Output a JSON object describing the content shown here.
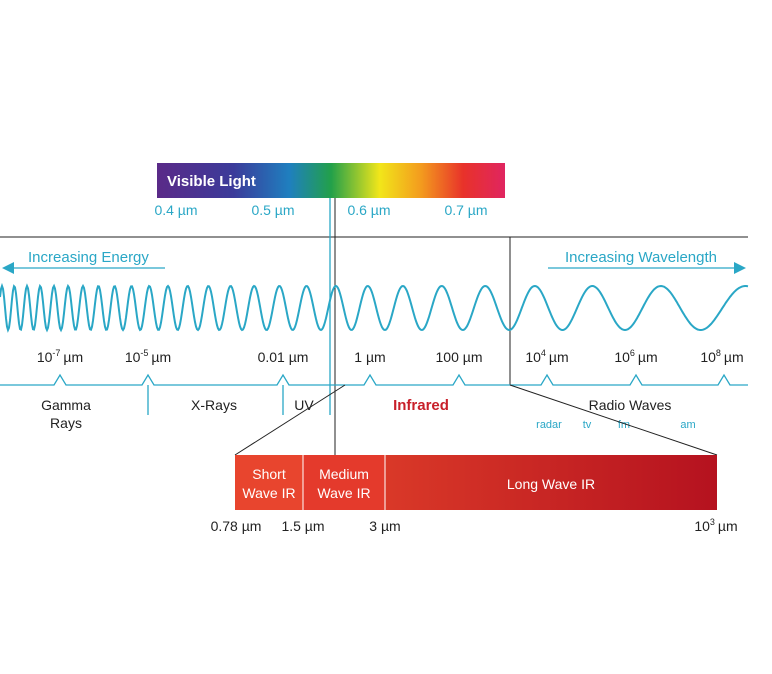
{
  "visible": {
    "title": "Visible Light",
    "ticks": [
      "0.4 µm",
      "0.5 µm",
      "0.6 µm",
      "0.7 µm"
    ]
  },
  "arrows": {
    "left": "Increasing Energy",
    "right": "Increasing Wavelength"
  },
  "scale": [
    {
      "base": "10",
      "exp": "-7",
      "unit": "µm"
    },
    {
      "base": "10",
      "exp": "-5",
      "unit": "µm"
    },
    {
      "text": "0.01 µm"
    },
    {
      "text": "1 µm"
    },
    {
      "text": "100 µm"
    },
    {
      "base": "10",
      "exp": "4",
      "unit": "µm"
    },
    {
      "base": "10",
      "exp": "6",
      "unit": "µm"
    },
    {
      "base": "10",
      "exp": "8",
      "unit": "µm"
    }
  ],
  "bands": {
    "gamma": [
      "Gamma",
      "Rays"
    ],
    "xrays": "X-Rays",
    "uv": "UV",
    "infrared": "Infrared",
    "radio": "Radio Waves",
    "radio_sub": [
      "radar",
      "tv",
      "fm",
      "am"
    ]
  },
  "ir": {
    "short": [
      "Short",
      "Wave IR"
    ],
    "medium": [
      "Medium",
      "Wave IR"
    ],
    "long": "Long Wave IR",
    "ticks": [
      "0.78 µm",
      "1.5 µm",
      "3 µm"
    ],
    "end": {
      "base": "10",
      "exp": "3",
      "unit": "µm"
    }
  }
}
